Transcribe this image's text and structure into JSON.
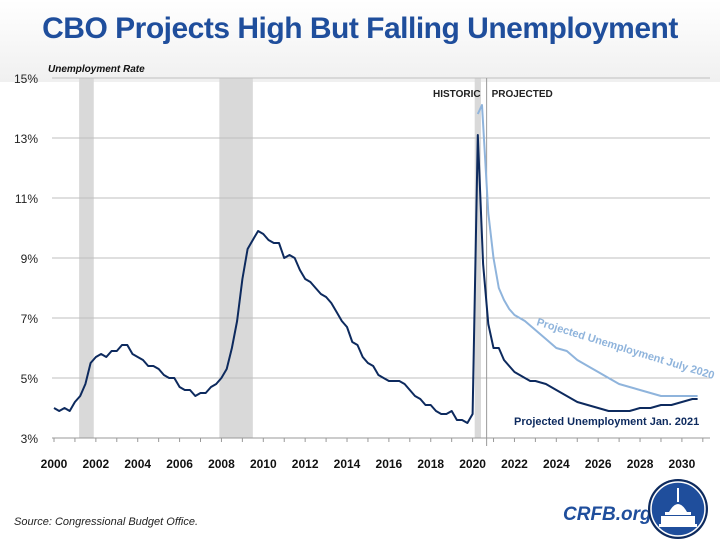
{
  "title": "CBO Projects High But Falling Unemployment",
  "source": "Source: Congressional Budget Office.",
  "brand": "CRFB.org",
  "colors": {
    "title": "#1f4e9c",
    "jan2021": "#0d2a5e",
    "july2020": "#8fb4dc",
    "recession": "#d9d9d9",
    "grid": "#bfbfbf"
  },
  "chart_data": {
    "type": "line",
    "ylabel": "Unemployment Rate",
    "ylim": [
      3,
      15
    ],
    "yticks": [
      "3%",
      "5%",
      "7%",
      "9%",
      "11%",
      "13%",
      "15%"
    ],
    "ytick_values": [
      3,
      5,
      7,
      9,
      11,
      13,
      15
    ],
    "xlim": [
      2000,
      2031
    ],
    "xticks": [
      "2000",
      "2002",
      "2004",
      "2006",
      "2008",
      "2010",
      "2012",
      "2014",
      "2016",
      "2018",
      "2020",
      "2022",
      "2024",
      "2026",
      "2028",
      "2030"
    ],
    "grid": true,
    "annotations": {
      "historic": "HISTORIC",
      "projected": "PROJECTED",
      "divider_year": 2020.67
    },
    "recessions": [
      [
        2001.2,
        2001.9
      ],
      [
        2007.9,
        2009.5
      ],
      [
        2020.1,
        2020.4
      ]
    ],
    "series": [
      {
        "name": "Projected Unemployment Jan. 2021",
        "color": "#0d2a5e",
        "x": [
          2000,
          2000.25,
          2000.5,
          2000.75,
          2001,
          2001.25,
          2001.5,
          2001.75,
          2002,
          2002.25,
          2002.5,
          2002.75,
          2003,
          2003.25,
          2003.5,
          2003.75,
          2004,
          2004.25,
          2004.5,
          2004.75,
          2005,
          2005.25,
          2005.5,
          2005.75,
          2006,
          2006.25,
          2006.5,
          2006.75,
          2007,
          2007.25,
          2007.5,
          2007.75,
          2008,
          2008.25,
          2008.5,
          2008.75,
          2009,
          2009.25,
          2009.5,
          2009.75,
          2010,
          2010.25,
          2010.5,
          2010.75,
          2011,
          2011.25,
          2011.5,
          2011.75,
          2012,
          2012.25,
          2012.5,
          2012.75,
          2013,
          2013.25,
          2013.5,
          2013.75,
          2014,
          2014.25,
          2014.5,
          2014.75,
          2015,
          2015.25,
          2015.5,
          2015.75,
          2016,
          2016.25,
          2016.5,
          2016.75,
          2017,
          2017.25,
          2017.5,
          2017.75,
          2018,
          2018.25,
          2018.5,
          2018.75,
          2019,
          2019.25,
          2019.5,
          2019.75,
          2020,
          2020.25,
          2020.5,
          2020.75,
          2021,
          2021.25,
          2021.5,
          2021.75,
          2022,
          2022.25,
          2022.5,
          2022.75,
          2023,
          2023.5,
          2024,
          2024.5,
          2025,
          2025.5,
          2026,
          2026.5,
          2027,
          2027.5,
          2028,
          2028.5,
          2029,
          2029.5,
          2030,
          2030.5,
          2030.75
        ],
        "y": [
          4.0,
          3.9,
          4.0,
          3.9,
          4.2,
          4.4,
          4.8,
          5.5,
          5.7,
          5.8,
          5.7,
          5.9,
          5.9,
          6.1,
          6.1,
          5.8,
          5.7,
          5.6,
          5.4,
          5.4,
          5.3,
          5.1,
          5.0,
          5.0,
          4.7,
          4.6,
          4.6,
          4.4,
          4.5,
          4.5,
          4.7,
          4.8,
          5.0,
          5.3,
          6.0,
          6.9,
          8.3,
          9.3,
          9.6,
          9.9,
          9.8,
          9.6,
          9.5,
          9.5,
          9.0,
          9.1,
          9.0,
          8.6,
          8.3,
          8.2,
          8.0,
          7.8,
          7.7,
          7.5,
          7.2,
          6.9,
          6.7,
          6.2,
          6.1,
          5.7,
          5.5,
          5.4,
          5.1,
          5.0,
          4.9,
          4.9,
          4.9,
          4.8,
          4.6,
          4.4,
          4.3,
          4.1,
          4.1,
          3.9,
          3.8,
          3.8,
          3.9,
          3.6,
          3.6,
          3.5,
          3.8,
          13.1,
          8.8,
          6.8,
          6.0,
          6.0,
          5.6,
          5.4,
          5.2,
          5.1,
          5.0,
          4.9,
          4.9,
          4.8,
          4.6,
          4.4,
          4.2,
          4.1,
          4.0,
          3.9,
          3.9,
          3.9,
          4.0,
          4.0,
          4.1,
          4.1,
          4.2,
          4.3,
          4.3
        ]
      },
      {
        "name": "Projected Unemployment July 2020",
        "color": "#8fb4dc",
        "x": [
          2020.25,
          2020.45,
          2020.75,
          2021,
          2021.25,
          2021.5,
          2021.75,
          2022,
          2022.5,
          2023,
          2023.5,
          2024,
          2024.5,
          2025,
          2025.5,
          2026,
          2026.5,
          2027,
          2027.5,
          2028,
          2028.5,
          2029,
          2030,
          2030.75
        ],
        "y": [
          13.8,
          14.1,
          10.5,
          9.0,
          8.0,
          7.6,
          7.3,
          7.1,
          6.9,
          6.6,
          6.3,
          6.0,
          5.9,
          5.6,
          5.4,
          5.2,
          5.0,
          4.8,
          4.7,
          4.6,
          4.5,
          4.4,
          4.4,
          4.4
        ]
      }
    ]
  }
}
